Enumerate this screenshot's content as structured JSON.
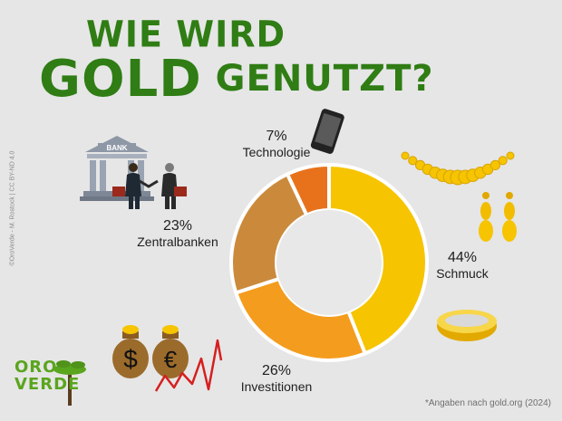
{
  "header": {
    "title_line1": "WIE WIRD",
    "title_big": "GOLD",
    "title_line2_rest": " GENUTZT?"
  },
  "credit": "©OroVerde - M. Rostock | CC BY-ND 4.0",
  "source_note": "*Angaben nach gold.org (2024)",
  "logo": {
    "line1": "ORO",
    "line2": "VERDE"
  },
  "icons": {
    "bank_sign": "BANK",
    "dollar": "$",
    "euro": "€",
    "names": [
      "bank-building-icon",
      "smartphone-icon",
      "necklace-icon",
      "earrings-icon",
      "ring-icon",
      "money-bags-icon",
      "stock-line-icon",
      "tree-icon"
    ]
  },
  "chart_data": {
    "type": "pie",
    "variant": "donut",
    "title": "WIE WIRD GOLD GENUTZT?",
    "slices": [
      {
        "label": "Schmuck",
        "value": 44,
        "display": "44%",
        "color": "#f6c400"
      },
      {
        "label": "Investitionen",
        "value": 26,
        "display": "26%",
        "color": "#f49c1d"
      },
      {
        "label": "Zentralbanken",
        "value": 23,
        "display": "23%",
        "color": "#cb8a3b"
      },
      {
        "label": "Technologie",
        "value": 7,
        "display": "7%",
        "color": "#e8721b"
      }
    ],
    "start": "top",
    "direction": "clockwise",
    "legend": "none"
  }
}
